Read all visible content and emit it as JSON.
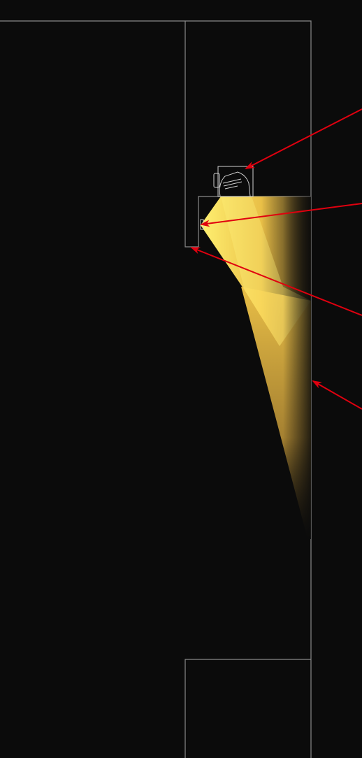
{
  "colors": {
    "background": "#0b0b0b",
    "wall_outline": "#8a8a8a",
    "fixture_outline": "#d0d0d0",
    "light_bright": "#fff071",
    "light_mid": "#f5c94a",
    "light_fade": "#b8903a",
    "callout_arrow": "#e0000f"
  },
  "icons": {
    "fixture": "spotlight-fixture-icon",
    "arrow": "red-callout-arrow"
  },
  "diagram": {
    "elements": [
      "wall-outline",
      "ceiling-recess",
      "light-fixture",
      "light-beam",
      "wall-surface"
    ],
    "callout_count": 4
  }
}
